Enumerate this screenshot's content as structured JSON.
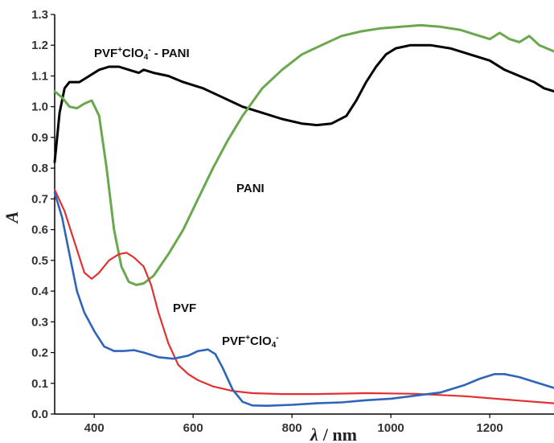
{
  "chart_data": {
    "type": "line",
    "title": "",
    "xlabel_sym": "λ",
    "xlabel_unit": "/ nm",
    "ylabel": "A",
    "xlim": [
      320,
      1330
    ],
    "ylim": [
      0,
      1.3
    ],
    "xticks": [
      400,
      600,
      800,
      1000,
      1200
    ],
    "yticks": [
      0.0,
      0.1,
      0.2,
      0.3,
      0.4,
      0.5,
      0.6,
      0.7,
      0.8,
      0.9,
      1.0,
      1.1,
      1.2,
      1.3
    ],
    "grid": false,
    "legend": "none",
    "series": [
      {
        "name": "PVF+ClO4- - PANI",
        "color": "#000000",
        "x": [
          320,
          330,
          340,
          350,
          370,
          390,
          410,
          430,
          450,
          470,
          490,
          500,
          520,
          550,
          580,
          620,
          660,
          700,
          740,
          780,
          820,
          850,
          880,
          910,
          930,
          950,
          970,
          990,
          1010,
          1040,
          1080,
          1120,
          1160,
          1200,
          1230,
          1260,
          1290,
          1310,
          1330
        ],
        "y": [
          0.82,
          0.98,
          1.06,
          1.08,
          1.08,
          1.1,
          1.12,
          1.13,
          1.13,
          1.12,
          1.11,
          1.12,
          1.11,
          1.1,
          1.08,
          1.06,
          1.03,
          1.0,
          0.98,
          0.96,
          0.945,
          0.94,
          0.945,
          0.97,
          1.02,
          1.08,
          1.13,
          1.17,
          1.19,
          1.2,
          1.2,
          1.19,
          1.17,
          1.15,
          1.12,
          1.1,
          1.08,
          1.06,
          1.05
        ]
      },
      {
        "name": "PANI",
        "color": "#6aa84f",
        "x": [
          320,
          335,
          350,
          365,
          380,
          395,
          410,
          425,
          440,
          455,
          470,
          485,
          500,
          520,
          550,
          580,
          610,
          640,
          670,
          700,
          740,
          780,
          820,
          860,
          900,
          940,
          980,
          1020,
          1060,
          1100,
          1140,
          1180,
          1200,
          1220,
          1240,
          1260,
          1280,
          1300,
          1330
        ],
        "y": [
          1.05,
          1.03,
          1.0,
          0.995,
          1.01,
          1.02,
          0.97,
          0.8,
          0.6,
          0.48,
          0.43,
          0.42,
          0.425,
          0.45,
          0.52,
          0.6,
          0.7,
          0.8,
          0.89,
          0.97,
          1.06,
          1.12,
          1.17,
          1.2,
          1.23,
          1.245,
          1.255,
          1.26,
          1.265,
          1.26,
          1.25,
          1.23,
          1.22,
          1.24,
          1.22,
          1.21,
          1.23,
          1.2,
          1.18
        ]
      },
      {
        "name": "PVF",
        "color": "#e23030",
        "x": [
          320,
          340,
          360,
          380,
          395,
          410,
          430,
          450,
          465,
          480,
          500,
          515,
          530,
          550,
          570,
          590,
          610,
          640,
          680,
          720,
          780,
          850,
          950,
          1050,
          1150,
          1250,
          1330
        ],
        "y": [
          0.73,
          0.66,
          0.56,
          0.46,
          0.44,
          0.46,
          0.5,
          0.52,
          0.525,
          0.51,
          0.48,
          0.42,
          0.33,
          0.23,
          0.16,
          0.13,
          0.11,
          0.09,
          0.075,
          0.068,
          0.065,
          0.065,
          0.068,
          0.066,
          0.058,
          0.045,
          0.035
        ]
      },
      {
        "name": "PVF+ClO4-",
        "color": "#2f64b8",
        "x": [
          320,
          335,
          350,
          365,
          380,
          400,
          420,
          440,
          460,
          480,
          500,
          530,
          560,
          590,
          610,
          630,
          645,
          660,
          680,
          700,
          720,
          750,
          800,
          850,
          900,
          950,
          1000,
          1050,
          1100,
          1150,
          1180,
          1210,
          1230,
          1260,
          1290,
          1330
        ],
        "y": [
          0.72,
          0.64,
          0.52,
          0.4,
          0.33,
          0.27,
          0.22,
          0.205,
          0.205,
          0.208,
          0.2,
          0.185,
          0.18,
          0.19,
          0.205,
          0.21,
          0.195,
          0.15,
          0.08,
          0.04,
          0.028,
          0.027,
          0.03,
          0.035,
          0.038,
          0.045,
          0.05,
          0.06,
          0.07,
          0.095,
          0.115,
          0.13,
          0.13,
          0.12,
          0.105,
          0.085
        ]
      }
    ],
    "annotations": {
      "composite": {
        "main": "PVF",
        "sup1": "+",
        "mid": "ClO",
        "sub": "4",
        "sup2": "-",
        "tail": " - PANI"
      },
      "pani": "PANI",
      "pvf": "PVF",
      "pvf_clo4": {
        "main": "PVF",
        "sup1": "+",
        "mid": "ClO",
        "sub": "4",
        "sup2": "-"
      }
    }
  }
}
